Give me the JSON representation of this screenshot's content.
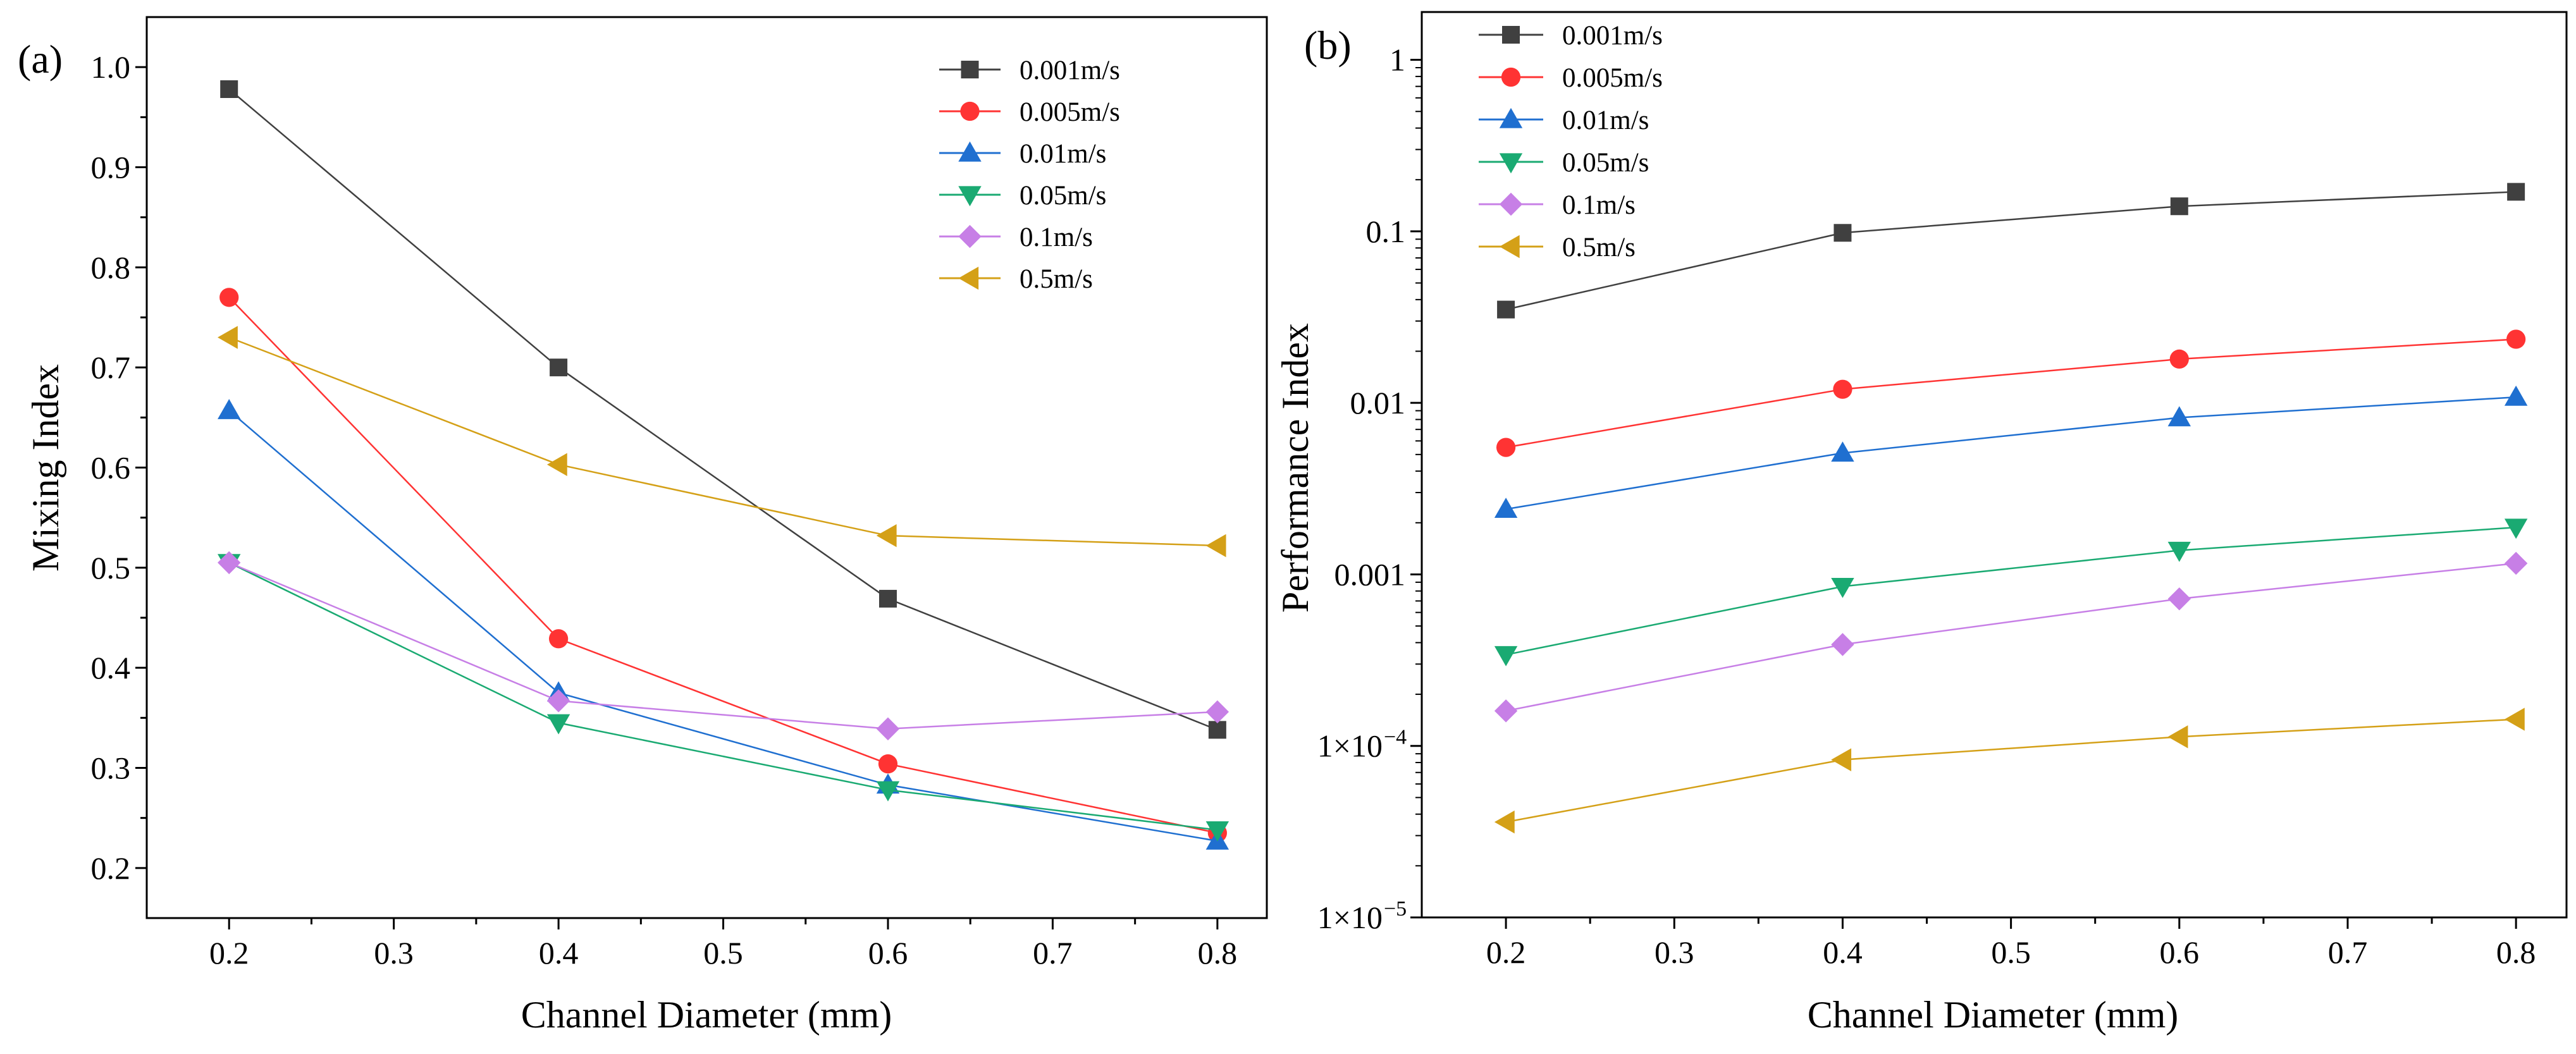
{
  "chart_data": [
    {
      "panel": "(a)",
      "type": "line",
      "xlabel": "Channel Diameter (mm)",
      "ylabel": "Mixing Index",
      "xlim": [
        0.15,
        0.83
      ],
      "ylim": [
        0.15,
        1.05
      ],
      "yscale": "linear",
      "xticks": [
        0.2,
        0.3,
        0.4,
        0.5,
        0.6,
        0.7,
        0.8
      ],
      "xtick_labels": [
        "0.2",
        "0.3",
        "0.4",
        "0.5",
        "0.6",
        "0.7",
        "0.8"
      ],
      "yticks": [
        0.2,
        0.3,
        0.4,
        0.5,
        0.6,
        0.7,
        0.8,
        0.9,
        1.0
      ],
      "ytick_labels": [
        "0.2",
        "0.3",
        "0.4",
        "0.5",
        "0.6",
        "0.7",
        "0.8",
        "0.9",
        "1.0"
      ],
      "legend_position": "top-right",
      "x": [
        0.2,
        0.4,
        0.6,
        0.8
      ],
      "series": [
        {
          "name": "0.001m/s",
          "color": "#404040",
          "marker": "square",
          "values": [
            0.978,
            0.7,
            0.469,
            0.338
          ]
        },
        {
          "name": "0.005m/s",
          "color": "#ff3333",
          "marker": "circle",
          "values": [
            0.77,
            0.429,
            0.304,
            0.235
          ]
        },
        {
          "name": "0.01m/s",
          "color": "#1f6fd0",
          "marker": "triangle-up",
          "values": [
            0.657,
            0.375,
            0.283,
            0.227
          ]
        },
        {
          "name": "0.05m/s",
          "color": "#1aaa72",
          "marker": "triangle-down",
          "values": [
            0.505,
            0.345,
            0.278,
            0.238
          ]
        },
        {
          "name": "0.1m/s",
          "color": "#c77fe6",
          "marker": "diamond",
          "values": [
            0.505,
            0.367,
            0.339,
            0.356
          ]
        },
        {
          "name": "0.5m/s",
          "color": "#d4a017",
          "marker": "triangle-left",
          "values": [
            0.73,
            0.603,
            0.532,
            0.522
          ]
        }
      ]
    },
    {
      "panel": "(b)",
      "type": "line",
      "xlabel": "Channel Diameter (mm)",
      "ylabel": "Performance Index",
      "xlim": [
        0.15,
        0.83
      ],
      "ylim": [
        1e-05,
        1.9
      ],
      "yscale": "log",
      "xticks": [
        0.2,
        0.3,
        0.4,
        0.5,
        0.6,
        0.7,
        0.8
      ],
      "xtick_labels": [
        "0.2",
        "0.3",
        "0.4",
        "0.5",
        "0.6",
        "0.7",
        "0.8"
      ],
      "yticks": [
        1e-05,
        0.0001,
        0.001,
        0.01,
        0.1,
        1
      ],
      "ytick_labels": [
        "1×10",
        "1×10",
        "0.001",
        "0.01",
        "0.1",
        "1"
      ],
      "ytick_exponents": [
        "−5",
        "−4",
        "",
        "",
        "",
        ""
      ],
      "legend_position": "top-left",
      "x": [
        0.2,
        0.4,
        0.6,
        0.8
      ],
      "series": [
        {
          "name": "0.001m/s",
          "color": "#404040",
          "marker": "square",
          "values": [
            0.035,
            0.098,
            0.14,
            0.17
          ]
        },
        {
          "name": "0.005m/s",
          "color": "#ff3333",
          "marker": "circle",
          "values": [
            0.0055,
            0.012,
            0.018,
            0.0235
          ]
        },
        {
          "name": "0.01m/s",
          "color": "#1f6fd0",
          "marker": "triangle-up",
          "values": [
            0.0024,
            0.0051,
            0.0082,
            0.0108
          ]
        },
        {
          "name": "0.05m/s",
          "color": "#1aaa72",
          "marker": "triangle-down",
          "values": [
            0.00034,
            0.00085,
            0.00138,
            0.00188
          ]
        },
        {
          "name": "0.1m/s",
          "color": "#c77fe6",
          "marker": "diamond",
          "values": [
            0.00016,
            0.00039,
            0.00072,
            0.00116
          ]
        },
        {
          "name": "0.5m/s",
          "color": "#d4a017",
          "marker": "triangle-left",
          "values": [
            3.6e-05,
            8.3e-05,
            0.000113,
            0.000143
          ]
        }
      ]
    }
  ]
}
